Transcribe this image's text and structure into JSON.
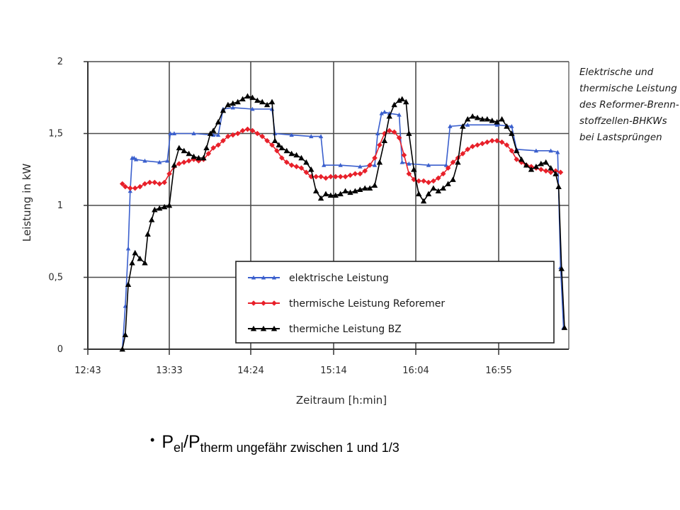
{
  "chart_data": {
    "type": "line",
    "title": "",
    "caption": [
      "Elektrische und",
      "thermische Leistung",
      "des Reformer-Brenn-",
      "stoffzellen-BHKWs",
      "bei Lastsprüngen"
    ],
    "xlabel": "Zeitraum [h:min]",
    "ylabel": "Leistung in kW",
    "x_ticks": [
      "12:43",
      "13:33",
      "14:24",
      "15:14",
      "16:04",
      "16:55"
    ],
    "y_ticks": [
      "0",
      "0,5",
      "1",
      "1,5",
      "2"
    ],
    "ylim": [
      0,
      2
    ],
    "xlim_hours": [
      12.717,
      17.6
    ],
    "grid": true,
    "legend_position": "bottom-right",
    "series": [
      {
        "name": "elektrische Leistung",
        "color": "#3a5fcd",
        "marker": "triangle",
        "x": [
          13.07,
          13.1,
          13.13,
          13.15,
          13.17,
          13.19,
          13.21,
          13.3,
          13.45,
          13.53,
          13.56,
          13.6,
          13.8,
          14.0,
          14.05,
          14.1,
          14.2,
          14.4,
          14.6,
          14.63,
          14.8,
          15.0,
          15.1,
          15.13,
          15.3,
          15.5,
          15.65,
          15.68,
          15.72,
          15.75,
          15.8,
          15.9,
          15.93,
          16.0,
          16.2,
          16.38,
          16.42,
          16.6,
          16.9,
          17.05,
          17.1,
          17.3,
          17.45,
          17.52,
          17.55,
          17.58
        ],
        "y": [
          0.0,
          0.3,
          0.7,
          1.1,
          1.33,
          1.33,
          1.32,
          1.31,
          1.3,
          1.31,
          1.5,
          1.5,
          1.5,
          1.49,
          1.49,
          1.67,
          1.68,
          1.67,
          1.67,
          1.5,
          1.49,
          1.48,
          1.48,
          1.28,
          1.28,
          1.27,
          1.28,
          1.5,
          1.64,
          1.65,
          1.64,
          1.63,
          1.3,
          1.29,
          1.28,
          1.28,
          1.55,
          1.56,
          1.56,
          1.55,
          1.39,
          1.38,
          1.38,
          1.37,
          0.57,
          0.15
        ]
      },
      {
        "name": "thermische Leistung Reforemer",
        "color": "#e8202a",
        "marker": "diamond",
        "x": [
          13.07,
          13.1,
          13.15,
          13.2,
          13.25,
          13.3,
          13.35,
          13.4,
          13.45,
          13.5,
          13.55,
          13.6,
          13.65,
          13.7,
          13.75,
          13.8,
          13.85,
          13.9,
          13.95,
          14.0,
          14.05,
          14.1,
          14.15,
          14.2,
          14.25,
          14.3,
          14.35,
          14.4,
          14.45,
          14.5,
          14.55,
          14.6,
          14.65,
          14.7,
          14.75,
          14.8,
          14.85,
          14.9,
          14.95,
          15.0,
          15.05,
          15.1,
          15.15,
          15.2,
          15.25,
          15.3,
          15.35,
          15.4,
          15.45,
          15.5,
          15.55,
          15.6,
          15.65,
          15.7,
          15.75,
          15.8,
          15.85,
          15.9,
          15.95,
          16.0,
          16.05,
          16.1,
          16.15,
          16.2,
          16.25,
          16.3,
          16.35,
          16.4,
          16.45,
          16.5,
          16.55,
          16.6,
          16.65,
          16.7,
          16.75,
          16.8,
          16.85,
          16.9,
          16.95,
          17.0,
          17.05,
          17.1,
          17.15,
          17.2,
          17.25,
          17.3,
          17.35,
          17.4,
          17.45,
          17.5,
          17.55
        ],
        "y": [
          1.15,
          1.13,
          1.12,
          1.12,
          1.13,
          1.15,
          1.16,
          1.16,
          1.15,
          1.16,
          1.22,
          1.27,
          1.29,
          1.3,
          1.31,
          1.32,
          1.31,
          1.32,
          1.36,
          1.4,
          1.42,
          1.45,
          1.48,
          1.49,
          1.5,
          1.52,
          1.53,
          1.52,
          1.5,
          1.48,
          1.45,
          1.42,
          1.38,
          1.33,
          1.3,
          1.28,
          1.27,
          1.26,
          1.23,
          1.2,
          1.2,
          1.2,
          1.19,
          1.2,
          1.2,
          1.2,
          1.2,
          1.21,
          1.22,
          1.22,
          1.24,
          1.28,
          1.33,
          1.42,
          1.5,
          1.52,
          1.51,
          1.47,
          1.35,
          1.22,
          1.18,
          1.17,
          1.17,
          1.16,
          1.17,
          1.19,
          1.22,
          1.26,
          1.3,
          1.33,
          1.36,
          1.39,
          1.41,
          1.42,
          1.43,
          1.44,
          1.45,
          1.45,
          1.44,
          1.42,
          1.38,
          1.32,
          1.3,
          1.28,
          1.27,
          1.26,
          1.25,
          1.24,
          1.23,
          1.24,
          1.23
        ]
      },
      {
        "name": "thermiche Leistung BZ",
        "color": "#000000",
        "marker": "triangle",
        "x": [
          13.07,
          13.1,
          13.13,
          13.17,
          13.2,
          13.25,
          13.3,
          13.33,
          13.37,
          13.4,
          13.45,
          13.5,
          13.55,
          13.6,
          13.65,
          13.7,
          13.75,
          13.8,
          13.85,
          13.9,
          13.93,
          13.97,
          14.0,
          14.05,
          14.1,
          14.15,
          14.2,
          14.25,
          14.3,
          14.35,
          14.4,
          14.45,
          14.5,
          14.55,
          14.6,
          14.63,
          14.67,
          14.7,
          14.75,
          14.8,
          14.85,
          14.9,
          14.95,
          15.0,
          15.05,
          15.1,
          15.15,
          15.2,
          15.25,
          15.3,
          15.35,
          15.4,
          15.45,
          15.5,
          15.55,
          15.6,
          15.65,
          15.7,
          15.75,
          15.8,
          15.85,
          15.9,
          15.93,
          15.97,
          16.0,
          16.05,
          16.1,
          16.15,
          16.2,
          16.25,
          16.3,
          16.35,
          16.4,
          16.45,
          16.5,
          16.55,
          16.6,
          16.65,
          16.7,
          16.75,
          16.8,
          16.85,
          16.9,
          16.95,
          17.0,
          17.05,
          17.1,
          17.15,
          17.2,
          17.25,
          17.3,
          17.35,
          17.4,
          17.45,
          17.5,
          17.53,
          17.56,
          17.59
        ],
        "y": [
          0.0,
          0.1,
          0.45,
          0.6,
          0.67,
          0.63,
          0.6,
          0.8,
          0.9,
          0.97,
          0.98,
          0.99,
          1.0,
          1.28,
          1.4,
          1.38,
          1.36,
          1.34,
          1.33,
          1.33,
          1.4,
          1.5,
          1.52,
          1.58,
          1.66,
          1.7,
          1.71,
          1.72,
          1.74,
          1.76,
          1.75,
          1.73,
          1.72,
          1.7,
          1.72,
          1.45,
          1.42,
          1.4,
          1.38,
          1.36,
          1.35,
          1.33,
          1.3,
          1.25,
          1.1,
          1.05,
          1.08,
          1.07,
          1.07,
          1.08,
          1.1,
          1.09,
          1.1,
          1.11,
          1.12,
          1.12,
          1.14,
          1.3,
          1.45,
          1.62,
          1.7,
          1.73,
          1.74,
          1.72,
          1.5,
          1.25,
          1.08,
          1.03,
          1.08,
          1.12,
          1.1,
          1.12,
          1.15,
          1.18,
          1.3,
          1.55,
          1.6,
          1.62,
          1.61,
          1.6,
          1.6,
          1.59,
          1.58,
          1.6,
          1.55,
          1.5,
          1.38,
          1.32,
          1.28,
          1.25,
          1.27,
          1.29,
          1.3,
          1.26,
          1.22,
          1.13,
          0.56,
          0.15
        ]
      }
    ]
  },
  "bullet": {
    "p1": "P",
    "sub1": "el",
    "slash": "/P",
    "sub2": "therm ungefähr zwischen 1 und 1/3"
  }
}
